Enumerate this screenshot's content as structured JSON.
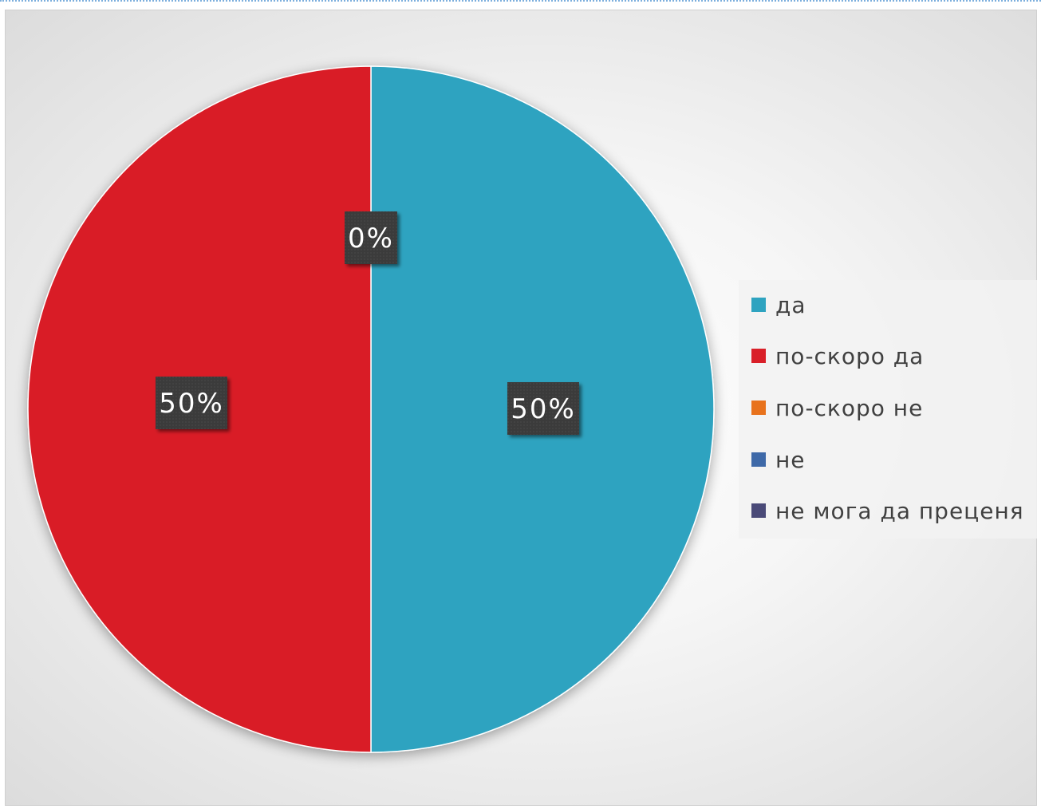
{
  "chart_data": {
    "type": "pie",
    "slices": [
      {
        "label": "да",
        "value": 50,
        "color": "#2ea3c0",
        "data_label": "50%"
      },
      {
        "label": "по-скоро да",
        "value": 50,
        "color": "#d91f28",
        "data_label": "50%"
      },
      {
        "label": "по-скоро не",
        "value": 0,
        "color": "#e8721c",
        "data_label": "0%"
      },
      {
        "label": "не",
        "value": 0,
        "color": "#3e69a8",
        "data_label": ""
      },
      {
        "label": "не мога да преценя",
        "value": 0,
        "color": "#4a4a78",
        "data_label": ""
      }
    ],
    "legend_position": "right",
    "title": ""
  }
}
